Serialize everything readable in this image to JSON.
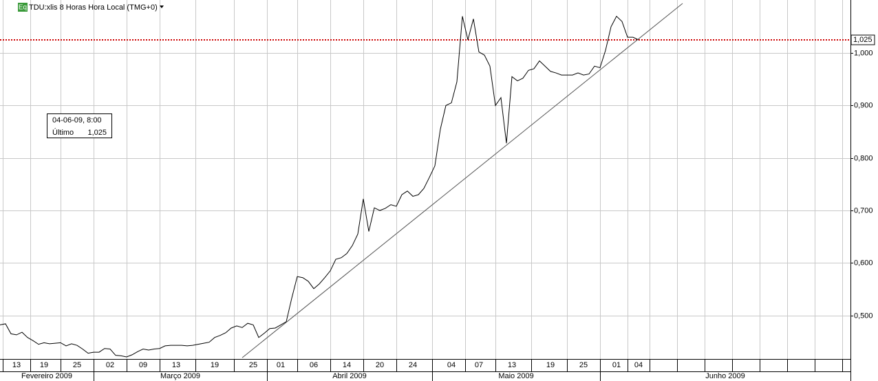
{
  "header": {
    "icon": "Eq",
    "title": "TDU:xlis 8 Horas Hora Local (TMG+0)"
  },
  "chart_data": {
    "type": "line",
    "categories": [
      null,
      null,
      null,
      "13",
      null,
      null,
      null,
      null,
      "19",
      null,
      null,
      null,
      null,
      null,
      "25",
      null,
      null,
      null,
      null,
      null,
      "02",
      null,
      null,
      null,
      null,
      null,
      "09",
      null,
      null,
      null,
      null,
      null,
      "13",
      null,
      null,
      null,
      null,
      null,
      null,
      "19",
      null,
      null,
      null,
      null,
      null,
      null,
      "25",
      null,
      null,
      null,
      null,
      "01",
      null,
      null,
      null,
      null,
      null,
      "06",
      null,
      null,
      null,
      null,
      null,
      "14",
      null,
      null,
      null,
      null,
      null,
      "20",
      null,
      null,
      null,
      null,
      null,
      "24",
      null,
      null,
      null,
      null,
      null,
      null,
      "04",
      null,
      null,
      null,
      null,
      "07",
      null,
      null,
      null,
      null,
      null,
      "13",
      null,
      null,
      null,
      null,
      null,
      null,
      "19",
      null,
      null,
      null,
      null,
      null,
      "25",
      null,
      null,
      null,
      null,
      null,
      "01",
      null,
      null,
      null,
      "04"
    ],
    "months": [
      "Fevereiro 2009",
      "Março 2009",
      "Abril 2009",
      "Maio 2009",
      "Junho 2009"
    ],
    "values": [
      0.482,
      0.484,
      0.465,
      0.463,
      0.468,
      0.458,
      0.452,
      0.445,
      0.448,
      0.446,
      0.447,
      0.448,
      0.442,
      0.446,
      0.443,
      0.436,
      0.428,
      0.43,
      0.43,
      0.437,
      0.436,
      0.424,
      0.423,
      0.421,
      0.425,
      0.431,
      0.436,
      0.434,
      0.436,
      0.437,
      0.442,
      0.443,
      0.443,
      0.443,
      0.442,
      0.443,
      0.445,
      0.447,
      0.449,
      0.458,
      0.462,
      0.467,
      0.476,
      0.48,
      0.477,
      0.485,
      0.482,
      0.458,
      0.466,
      0.475,
      0.476,
      0.482,
      0.488,
      0.533,
      0.574,
      0.572,
      0.565,
      0.551,
      0.56,
      0.572,
      0.585,
      0.607,
      0.61,
      0.618,
      0.633,
      0.655,
      0.722,
      0.66,
      0.705,
      0.7,
      0.704,
      0.711,
      0.708,
      0.73,
      0.737,
      0.727,
      0.73,
      0.742,
      0.763,
      0.785,
      0.855,
      0.9,
      0.905,
      0.945,
      1.07,
      1.025,
      1.065,
      1.002,
      0.996,
      0.975,
      0.9,
      0.915,
      0.828,
      0.955,
      0.947,
      0.952,
      0.967,
      0.97,
      0.985,
      0.975,
      0.965,
      0.962,
      0.958,
      0.958,
      0.958,
      0.962,
      0.958,
      0.96,
      0.975,
      0.972,
      1.005,
      1.05,
      1.07,
      1.06,
      1.03,
      1.03,
      1.025
    ],
    "color": "#000000",
    "ylim": [
      0.417,
      1.101
    ],
    "yticks": [
      {
        "value": 0.5,
        "label": "0,500"
      },
      {
        "value": 0.6,
        "label": "0,600"
      },
      {
        "value": 0.7,
        "label": "0,700"
      },
      {
        "value": 0.8,
        "label": "0,800"
      },
      {
        "value": 0.9,
        "label": "0,900"
      },
      {
        "value": 1.0,
        "label": "1,000"
      }
    ],
    "grid": true,
    "last_price": {
      "value": 1.025,
      "label": "1,025",
      "color": "#cc0000"
    },
    "info": {
      "date": "04-06-09, 8:00",
      "label": "Último"
    },
    "trendline": {
      "x": [
        44,
        124
      ],
      "values": [
        0.4194,
        1.0944
      ],
      "color": "#555555"
    }
  }
}
